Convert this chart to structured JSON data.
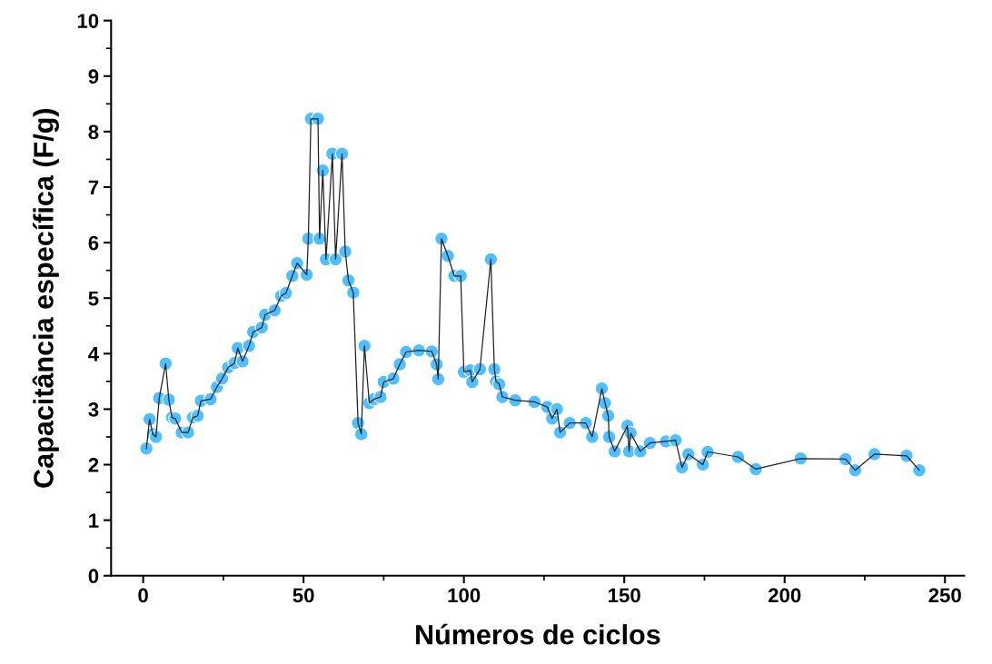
{
  "chart_data": {
    "type": "line",
    "xlabel": "Números de ciclos",
    "ylabel": "Capacitância específica (F/g)",
    "xlim": [
      -10,
      256
    ],
    "ylim": [
      0,
      10
    ],
    "xticks": [
      0,
      50,
      100,
      150,
      200,
      250
    ],
    "yticks": [
      0,
      1,
      2,
      3,
      4,
      5,
      6,
      7,
      8,
      9,
      10
    ],
    "grid": false,
    "legend": false,
    "marker": "circle",
    "line_style": "solid",
    "series": [
      {
        "color": "#4fbfff",
        "x": [
          1,
          2,
          3,
          4,
          5,
          7,
          8,
          9,
          10,
          12,
          14,
          15.5,
          17,
          18,
          21,
          23,
          24.6,
          26.5,
          28.5,
          29.5,
          31,
          33,
          34.3,
          37,
          38,
          41,
          43,
          44.5,
          46.5,
          48,
          51,
          51.5,
          52.3,
          54.5,
          55,
          56,
          57,
          59,
          60,
          62,
          63,
          64,
          65.5,
          67,
          68,
          69,
          70.5,
          72,
          74,
          75,
          78,
          80,
          82,
          86,
          90,
          91.5,
          92,
          93,
          95,
          97,
          99,
          100,
          102,
          102.6,
          105,
          108.4,
          109.5,
          110,
          111,
          112,
          116,
          122,
          126,
          127.5,
          129,
          130,
          133,
          138,
          140,
          143,
          144,
          145,
          145.3,
          147,
          151,
          151.5,
          152,
          155,
          158,
          163,
          166,
          168,
          170,
          174.5,
          176,
          185.5,
          191,
          205,
          219,
          222,
          228,
          238,
          242
        ],
        "values": [
          2.29,
          2.82,
          2.55,
          2.5,
          3.2,
          3.82,
          3.17,
          2.85,
          2.83,
          2.58,
          2.58,
          2.85,
          2.88,
          3.15,
          3.18,
          3.4,
          3.55,
          3.75,
          3.83,
          4.1,
          3.86,
          4.14,
          4.39,
          4.47,
          4.7,
          4.78,
          5.04,
          5.09,
          5.4,
          5.63,
          5.42,
          6.07,
          8.23,
          8.23,
          6.07,
          7.3,
          5.7,
          7.6,
          5.7,
          7.6,
          5.84,
          5.32,
          5.1,
          2.75,
          2.55,
          4.14,
          3.11,
          3.18,
          3.22,
          3.49,
          3.55,
          3.81,
          4.03,
          4.06,
          4.04,
          3.81,
          3.54,
          6.07,
          5.76,
          5.4,
          5.4,
          3.67,
          3.7,
          3.49,
          3.72,
          5.7,
          3.72,
          3.5,
          3.45,
          3.22,
          3.16,
          3.13,
          3.04,
          2.83,
          3.0,
          2.58,
          2.75,
          2.75,
          2.5,
          3.37,
          3.11,
          2.88,
          2.5,
          2.24,
          2.7,
          2.24,
          2.57,
          2.24,
          2.39,
          2.42,
          2.44,
          1.95,
          2.19,
          2.0,
          2.23,
          2.14,
          1.92,
          2.11,
          2.1,
          1.9,
          2.19,
          2.16,
          1.9
        ]
      }
    ]
  }
}
